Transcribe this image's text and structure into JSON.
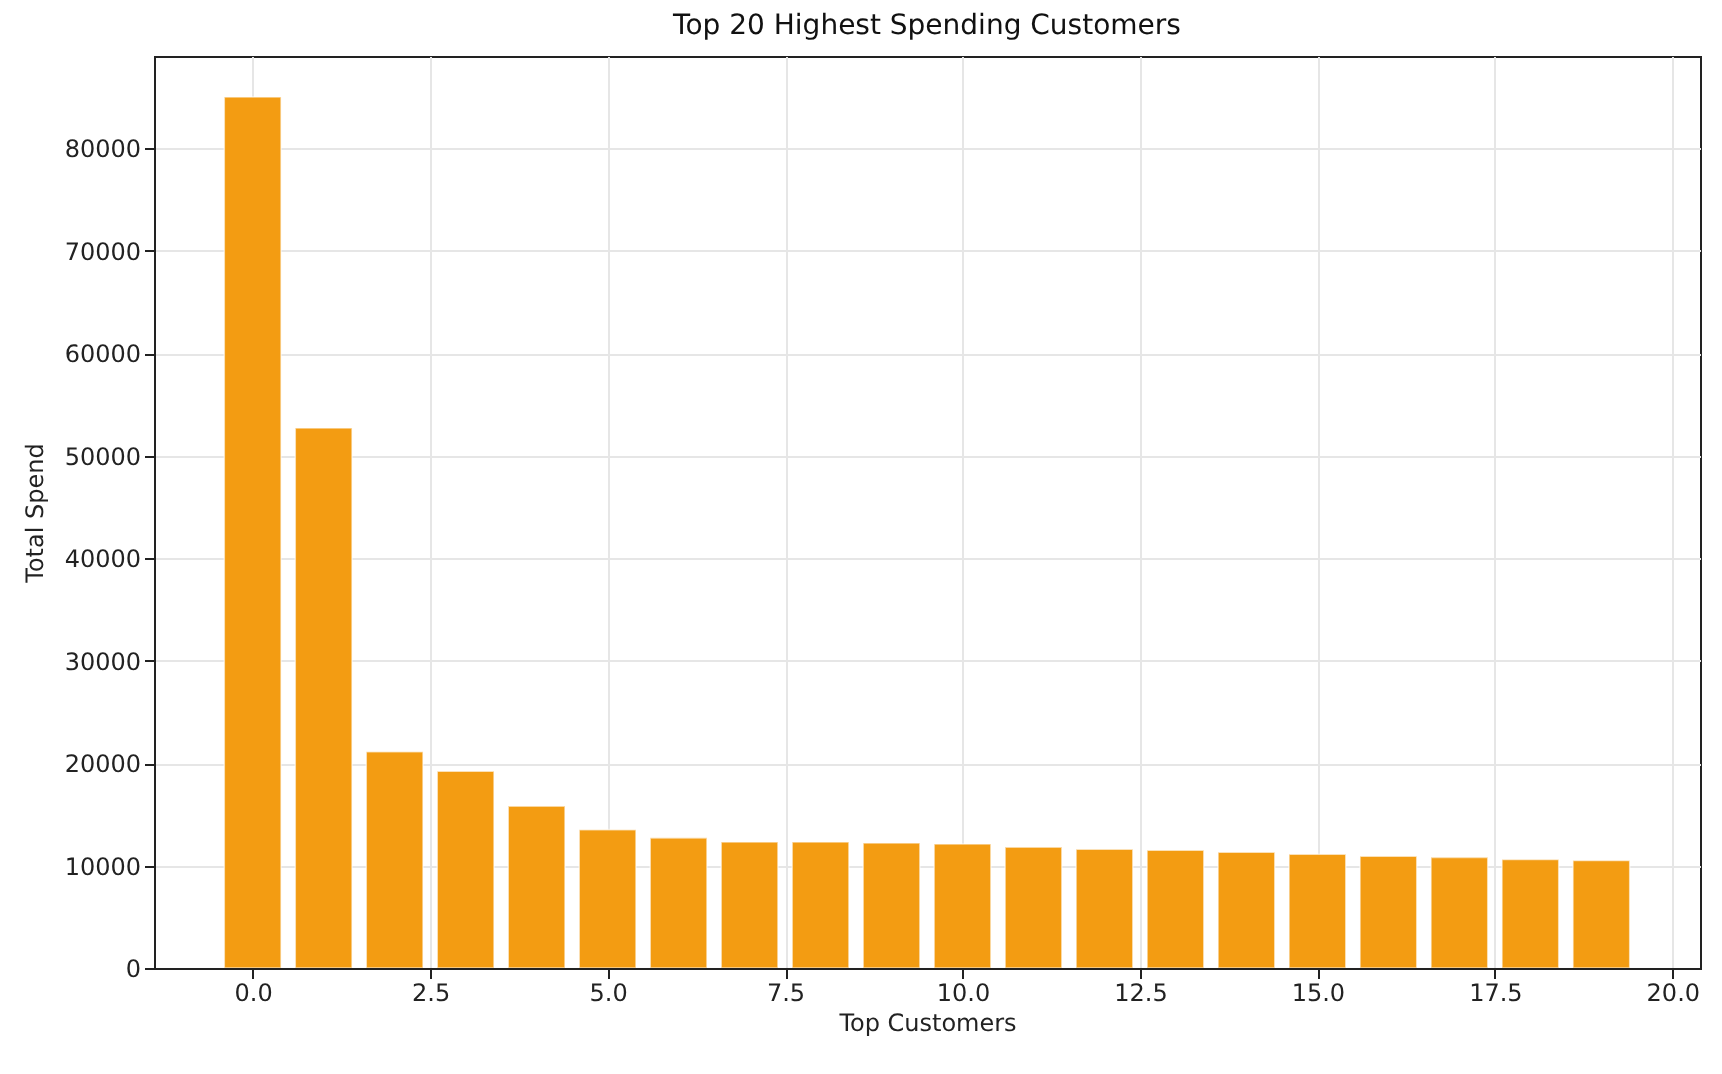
{
  "chart_data": {
    "type": "bar",
    "title": "Top 20 Highest Spending Customers",
    "xlabel": "Top Customers",
    "ylabel": "Total Spend",
    "x": [
      0,
      1,
      2,
      3,
      4,
      5,
      6,
      7,
      8,
      9,
      10,
      11,
      12,
      13,
      14,
      15,
      16,
      17,
      18,
      19
    ],
    "values": [
      85000,
      52700,
      21100,
      19200,
      15800,
      13500,
      12700,
      12300,
      12300,
      12200,
      12100,
      11800,
      11600,
      11500,
      11300,
      11100,
      10900,
      10800,
      10600,
      10500
    ],
    "color": "#f39c12",
    "xlim": [
      -1.39,
      20.39
    ],
    "xticks": [
      {
        "value": 0,
        "label": "0.0"
      },
      {
        "value": 2.5,
        "label": "2.5"
      },
      {
        "value": 5,
        "label": "5.0"
      },
      {
        "value": 7.5,
        "label": "7.5"
      },
      {
        "value": 10,
        "label": "10.0"
      },
      {
        "value": 12.5,
        "label": "12.5"
      },
      {
        "value": 15,
        "label": "15.0"
      },
      {
        "value": 17.5,
        "label": "17.5"
      },
      {
        "value": 20,
        "label": "20.0"
      }
    ],
    "ylim": [
      0,
      89000
    ],
    "yticks": [
      0,
      10000,
      20000,
      30000,
      40000,
      50000,
      60000,
      70000,
      80000
    ],
    "grid": true
  }
}
